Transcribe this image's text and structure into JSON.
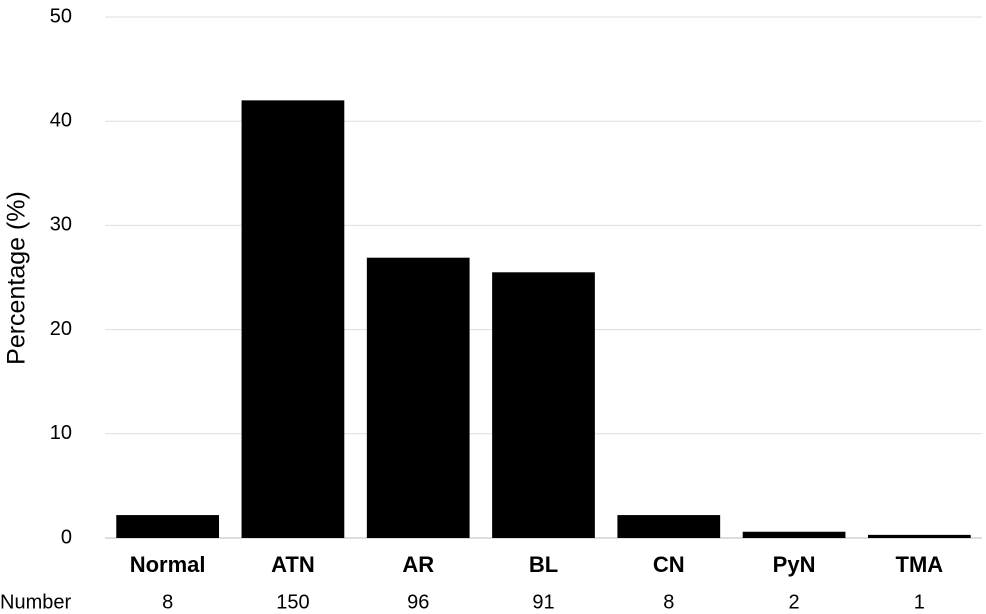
{
  "chart_data": {
    "type": "bar",
    "y_label": "Percentage (%)",
    "categories": [
      "Normal",
      "ATN",
      "AR",
      "BL",
      "CN",
      "PyN",
      "TMA"
    ],
    "values": [
      2.2,
      42.0,
      26.9,
      25.5,
      2.2,
      0.6,
      0.3
    ],
    "color": "#000000",
    "ylim": [
      0,
      50
    ],
    "yticks": [
      0,
      10,
      20,
      30,
      40,
      50
    ],
    "grid": true,
    "number_label": "Number",
    "numbers": [
      8,
      150,
      96,
      91,
      8,
      2,
      1
    ]
  }
}
